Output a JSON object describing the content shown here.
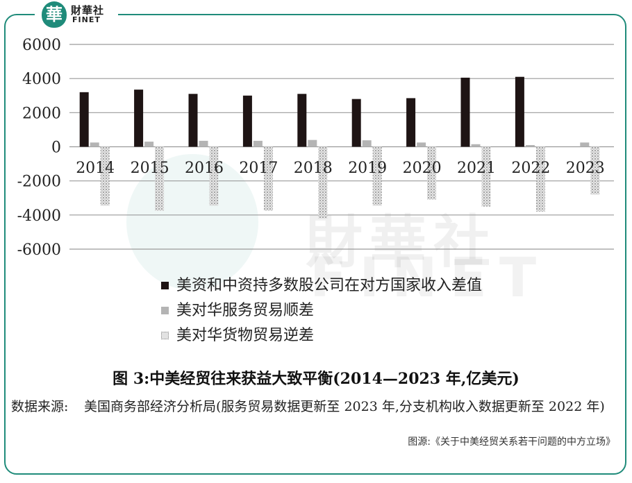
{
  "logo": {
    "glyph": "華",
    "cn": "財華社",
    "en": "FINET"
  },
  "watermark": {
    "cn": "財華社",
    "en": "FINET"
  },
  "chart_data": {
    "type": "bar",
    "categories": [
      "2014",
      "2015",
      "2016",
      "2017",
      "2018",
      "2019",
      "2020",
      "2021",
      "2022",
      "2023"
    ],
    "ylim": [
      -6000,
      6000
    ],
    "yticks": [
      "6000",
      "4000",
      "2000",
      "0",
      "-2000",
      "-4000",
      "-6000"
    ],
    "ytick_values": [
      6000,
      4000,
      2000,
      0,
      -2000,
      -4000,
      -6000
    ],
    "grid": true,
    "series": [
      {
        "name": "美资和中资持多数股公司在对方国家收入差值",
        "color": "#1e1414",
        "values": [
          3200,
          3350,
          3100,
          3000,
          3100,
          2800,
          2850,
          4050,
          4100,
          null
        ]
      },
      {
        "name": "美对华服务贸易顺差",
        "color": "#b4b4b4",
        "values": [
          250,
          300,
          350,
          350,
          400,
          380,
          250,
          150,
          100,
          250
        ]
      },
      {
        "name": "美对华货物贸易逆差",
        "color": "#d8d8d8",
        "values": [
          -3450,
          -3750,
          -3450,
          -3750,
          -4200,
          -3450,
          -3100,
          -3500,
          -3800,
          -2800
        ]
      }
    ]
  },
  "figure": {
    "title": "图 3:中美经贸往来获益大致平衡(2014—2023 年,亿美元)",
    "source_label": "数据来源:",
    "source_text": "美国商务部经济分析局(服务贸易数据更新至 2023 年,分支机构收入数据更新至 2022 年)"
  },
  "credit": "图源:《关于中美经贸关系若干问题的中方立场》"
}
